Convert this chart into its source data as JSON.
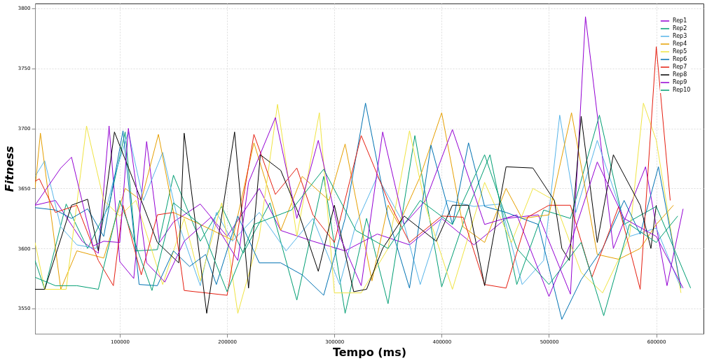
{
  "chart_data": {
    "type": "line",
    "xlabel": "Tempo (ms)",
    "ylabel": "Fitness",
    "xlim": [
      21000,
      644000
    ],
    "xticks": [
      100000,
      200000,
      300000,
      400000,
      500000,
      600000
    ],
    "ylim": [
      3529,
      3804
    ],
    "yticks": [
      3550,
      3600,
      3650,
      3700,
      3750,
      3800
    ],
    "grid": true,
    "legend": "top right",
    "line_style": "solid",
    "series": [
      {
        "name": "Rep1",
        "color": "#9400d3",
        "x": [
          21000,
          40000,
          65000,
          80000,
          90000,
          100000,
          113000,
          125000,
          137000,
          150000,
          175000,
          200000,
          230000,
          250000,
          280000,
          310000,
          340000,
          370000,
          400000,
          430000,
          460000,
          490000,
          520000,
          534000,
          560000,
          590000,
          610000,
          625000
        ],
        "values": [
          3636,
          3640,
          3606,
          3596,
          3702,
          3589,
          3575,
          3689,
          3605,
          3622,
          3637,
          3610,
          3650,
          3615,
          3606,
          3598,
          3612,
          3603,
          3625,
          3603,
          3625,
          3628,
          3562,
          3793,
          3600,
          3668,
          3569,
          3633
        ]
      },
      {
        "name": "Rep2",
        "color": "#009e73",
        "x": [
          21000,
          30000,
          50000,
          70000,
          90000,
          105000,
          115000,
          135000,
          150000,
          175000,
          195000,
          215000,
          240000,
          265000,
          290000,
          310000,
          330000,
          350000,
          375000,
          400000,
          425000,
          445000,
          470000,
          495000,
          520000,
          547000,
          570000,
          600000,
          632000
        ],
        "values": [
          3590,
          3566,
          3637,
          3600,
          3636,
          3697,
          3598,
          3599,
          3661,
          3606,
          3635,
          3596,
          3638,
          3557,
          3660,
          3546,
          3625,
          3554,
          3694,
          3568,
          3634,
          3678,
          3570,
          3632,
          3625,
          3711,
          3620,
          3635,
          3567
        ]
      },
      {
        "name": "Rep3",
        "color": "#56b4e9",
        "x": [
          21000,
          30000,
          45000,
          60000,
          78000,
          95000,
          108000,
          122000,
          140000,
          155000,
          175000,
          190000,
          205000,
          230000,
          255000,
          280000,
          305000,
          320000,
          340000,
          365000,
          380000,
          405000,
          430000,
          455000,
          475000,
          495000,
          510000,
          525000,
          545000,
          575000,
          600000,
          623000
        ],
        "values": [
          3660,
          3673,
          3618,
          3603,
          3600,
          3660,
          3697,
          3640,
          3680,
          3620,
          3569,
          3630,
          3606,
          3630,
          3598,
          3625,
          3570,
          3620,
          3660,
          3620,
          3570,
          3640,
          3635,
          3637,
          3570,
          3590,
          3711,
          3630,
          3690,
          3610,
          3617,
          3567
        ]
      },
      {
        "name": "Rep4",
        "color": "#e69f00",
        "x": [
          21000,
          26000,
          45000,
          60000,
          85000,
          105000,
          120000,
          136000,
          150000,
          175000,
          205000,
          225000,
          250000,
          270000,
          295000,
          310000,
          335000,
          350000,
          360000,
          380000,
          400000,
          420000,
          440000,
          460000,
          475000,
          500000,
          521000,
          545000,
          565000,
          585000,
          600000,
          616000
        ],
        "values": [
          3650,
          3696,
          3566,
          3598,
          3592,
          3650,
          3640,
          3695,
          3630,
          3620,
          3607,
          3688,
          3615,
          3660,
          3640,
          3687,
          3573,
          3636,
          3620,
          3660,
          3713,
          3618,
          3605,
          3650,
          3625,
          3628,
          3713,
          3595,
          3591,
          3600,
          3620,
          3636
        ]
      },
      {
        "name": "Rep5",
        "color": "#f0e442",
        "x": [
          21000,
          30000,
          50000,
          69000,
          85000,
          100000,
          115000,
          140000,
          160000,
          175000,
          195000,
          210000,
          230000,
          247000,
          265000,
          286000,
          300000,
          325000,
          350000,
          370000,
          385000,
          410000,
          440000,
          465000,
          485000,
          505000,
          530000,
          550000,
          575000,
          588000,
          600000,
          623000
        ],
        "values": [
          3605,
          3566,
          3566,
          3702,
          3640,
          3627,
          3640,
          3570,
          3625,
          3573,
          3638,
          3546,
          3610,
          3720,
          3610,
          3713,
          3563,
          3563,
          3600,
          3698,
          3635,
          3566,
          3655,
          3605,
          3650,
          3640,
          3580,
          3563,
          3610,
          3721,
          3690,
          3563
        ]
      },
      {
        "name": "Rep6",
        "color": "#0072b2",
        "x": [
          21000,
          40000,
          55000,
          70000,
          85000,
          103000,
          118000,
          135000,
          150000,
          165000,
          180000,
          190000,
          210000,
          230000,
          250000,
          270000,
          290000,
          310000,
          329000,
          350000,
          370000,
          390000,
          410000,
          425000,
          440000,
          460000,
          490000,
          512000,
          530000,
          550000,
          570000,
          585000,
          602000,
          623000
        ],
        "values": [
          3634,
          3632,
          3625,
          3633,
          3610,
          3698,
          3570,
          3569,
          3598,
          3585,
          3595,
          3570,
          3627,
          3588,
          3588,
          3578,
          3561,
          3625,
          3721,
          3626,
          3567,
          3686,
          3620,
          3688,
          3635,
          3630,
          3620,
          3541,
          3574,
          3600,
          3640,
          3612,
          3668,
          3567
        ]
      },
      {
        "name": "Rep7",
        "color": "#e51e10",
        "x": [
          21000,
          25000,
          40000,
          60000,
          80000,
          94000,
          103000,
          120000,
          135000,
          150000,
          160000,
          200000,
          225000,
          245000,
          265000,
          280000,
          300000,
          325000,
          350000,
          370000,
          400000,
          420000,
          440000,
          460000,
          480000,
          500000,
          520000,
          540000,
          565000,
          585000,
          600000,
          613000
        ],
        "values": [
          3656,
          3658,
          3630,
          3636,
          3590,
          3569,
          3636,
          3578,
          3628,
          3630,
          3565,
          3561,
          3695,
          3645,
          3667,
          3628,
          3605,
          3694,
          3640,
          3605,
          3627,
          3626,
          3570,
          3567,
          3626,
          3636,
          3636,
          3576,
          3635,
          3566,
          3768,
          3640
        ]
      },
      {
        "name": "Rep8",
        "color": "#000000",
        "x": [
          21000,
          30000,
          55000,
          70000,
          80000,
          95000,
          120000,
          135000,
          155000,
          160000,
          181000,
          207000,
          220000,
          231000,
          250000,
          268000,
          285000,
          300000,
          318000,
          330000,
          345000,
          365000,
          395000,
          410000,
          425000,
          440000,
          460000,
          485000,
          505000,
          512000,
          519000,
          530000,
          545000,
          560000,
          585000,
          595000,
          600000
        ],
        "values": [
          3566,
          3566,
          3636,
          3641,
          3598,
          3697,
          3640,
          3605,
          3588,
          3696,
          3546,
          3697,
          3567,
          3678,
          3665,
          3626,
          3581,
          3636,
          3564,
          3566,
          3600,
          3627,
          3606,
          3636,
          3636,
          3569,
          3668,
          3667,
          3640,
          3600,
          3590,
          3710,
          3605,
          3678,
          3636,
          3600,
          3636
        ]
      },
      {
        "name": "Rep9",
        "color": "#9400d3",
        "x": [
          21000,
          45000,
          55000,
          75000,
          85000,
          100000,
          108000,
          125000,
          142000,
          160000,
          185000,
          210000,
          220000,
          245000,
          265000,
          285000,
          305000,
          325000,
          345000,
          365000,
          385000,
          410000,
          440000,
          470000,
          500000,
          520000,
          545000,
          570000,
          600000,
          625000
        ],
        "values": [
          3636,
          3667,
          3676,
          3602,
          3606,
          3605,
          3700,
          3588,
          3572,
          3606,
          3626,
          3590,
          3655,
          3709,
          3625,
          3690,
          3610,
          3569,
          3697,
          3620,
          3640,
          3699,
          3620,
          3628,
          3560,
          3604,
          3672,
          3625,
          3610,
          3567
        ]
      },
      {
        "name": "Rep10",
        "color": "#009e73",
        "x": [
          21000,
          40000,
          60000,
          80000,
          100000,
          130000,
          150000,
          175000,
          200000,
          225000,
          260000,
          290000,
          320000,
          350000,
          380000,
          410000,
          440000,
          470000,
          500000,
          530000,
          551000,
          575000,
          600000,
          620000
        ],
        "values": [
          3576,
          3569,
          3569,
          3566,
          3640,
          3565,
          3638,
          3620,
          3564,
          3620,
          3632,
          3666,
          3615,
          3600,
          3640,
          3620,
          3678,
          3600,
          3570,
          3605,
          3544,
          3620,
          3605,
          3627
        ]
      }
    ]
  }
}
